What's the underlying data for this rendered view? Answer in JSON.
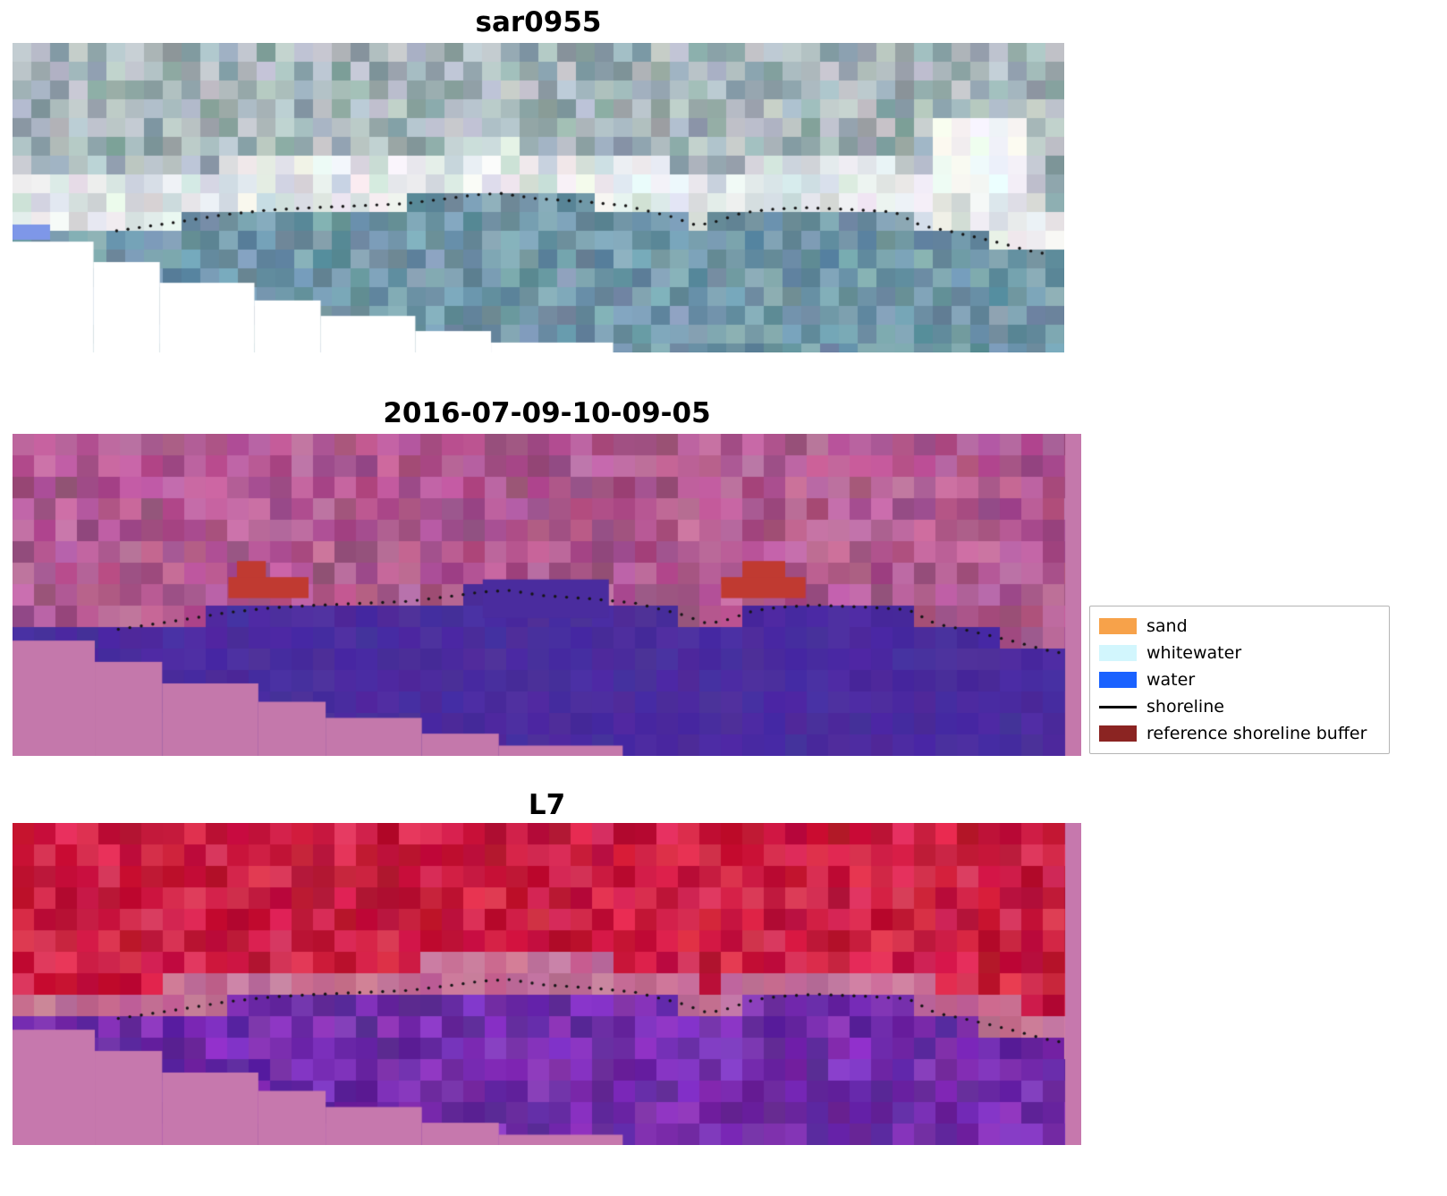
{
  "figure": {
    "panel1": {
      "title": "sar0955"
    },
    "panel2": {
      "title": "2016-07-09-10-09-05"
    },
    "panel3": {
      "title": "L7"
    },
    "legend": {
      "items": [
        {
          "label": "sand",
          "color": "#f7a24a",
          "swatch": "patch"
        },
        {
          "label": "whitewater",
          "color": "#d2f6fd",
          "swatch": "patch"
        },
        {
          "label": "water",
          "color": "#1a62ff",
          "swatch": "patch"
        },
        {
          "label": "shoreline",
          "color": "#000000",
          "swatch": "line"
        },
        {
          "label": "reference shoreline buffer",
          "color": "#8b2422",
          "swatch": "patch"
        }
      ]
    }
  },
  "chart_data": {
    "type": "heatmap",
    "subtype": "satellite-image-panels-with-shoreline-overlay",
    "panels": [
      {
        "title": "sar0955",
        "kind": "rgb"
      },
      {
        "title": "2016-07-09-10-09-05",
        "kind": "classified"
      },
      {
        "title": "L7",
        "kind": "false-color"
      }
    ],
    "legend_entries": [
      "sand",
      "whitewater",
      "water",
      "shoreline",
      "reference shoreline buffer"
    ],
    "shoreline_norm": [
      [
        0.099,
        0.607
      ],
      [
        0.158,
        0.578
      ],
      [
        0.201,
        0.555
      ],
      [
        0.243,
        0.54
      ],
      [
        0.286,
        0.532
      ],
      [
        0.328,
        0.526
      ],
      [
        0.371,
        0.52
      ],
      [
        0.413,
        0.503
      ],
      [
        0.439,
        0.491
      ],
      [
        0.464,
        0.486
      ],
      [
        0.498,
        0.503
      ],
      [
        0.541,
        0.512
      ],
      [
        0.583,
        0.526
      ],
      [
        0.626,
        0.561
      ],
      [
        0.651,
        0.59
      ],
      [
        0.668,
        0.578
      ],
      [
        0.694,
        0.549
      ],
      [
        0.719,
        0.538
      ],
      [
        0.753,
        0.532
      ],
      [
        0.796,
        0.538
      ],
      [
        0.838,
        0.546
      ],
      [
        0.864,
        0.59
      ],
      [
        0.889,
        0.607
      ],
      [
        0.915,
        0.627
      ],
      [
        0.94,
        0.647
      ],
      [
        0.966,
        0.671
      ],
      [
        0.979,
        0.679
      ]
    ],
    "nodata_steps_norm": [
      [
        0.0,
        0.642
      ],
      [
        0.077,
        0.708
      ],
      [
        0.14,
        0.775
      ],
      [
        0.23,
        0.832
      ],
      [
        0.293,
        0.882
      ],
      [
        0.383,
        0.931
      ],
      [
        0.455,
        0.968
      ],
      [
        0.571,
        1.0
      ]
    ],
    "buffer_rects_norm": [
      [
        0.202,
        0.445,
        0.277,
        0.51
      ],
      [
        0.21,
        0.395,
        0.237,
        0.447
      ],
      [
        0.663,
        0.445,
        0.742,
        0.51
      ],
      [
        0.683,
        0.395,
        0.723,
        0.447
      ]
    ],
    "palette": {
      "panel1": {
        "sky": [
          "#93a7ab",
          "#a9b9be",
          "#c2cbd0",
          "#849a9f",
          "#b7c3c8"
        ],
        "band": [
          "#e9edee",
          "#dde4e6",
          "#f2f4f4",
          "#cfd9dc"
        ],
        "water": [
          "#6e94a7",
          "#7da4b5",
          "#5c8598",
          "#88abba",
          "#67899b"
        ],
        "cloud": "#f4f6f7",
        "corner_blue": "#7e97e8",
        "nodata": "#ffffff"
      },
      "panel2": {
        "land": [
          "#b1578f",
          "#bd639c",
          "#a74e85",
          "#c36da4",
          "#9c4a7e"
        ],
        "water": "#4a2c9e",
        "buffer": "#c03a31",
        "nodata": "#c478ab"
      },
      "panel3": {
        "land": [
          "#cf1c41",
          "#d82a4e",
          "#c11238",
          "#e03458",
          "#b80f31"
        ],
        "band": [
          "#c46f97",
          "#cb7d9f",
          "#bd6590"
        ],
        "water": [
          "#7a2eb1",
          "#6a27a2",
          "#8938c2",
          "#5f2398"
        ],
        "nodata": "#c678ad"
      },
      "dot": "#151515"
    }
  }
}
